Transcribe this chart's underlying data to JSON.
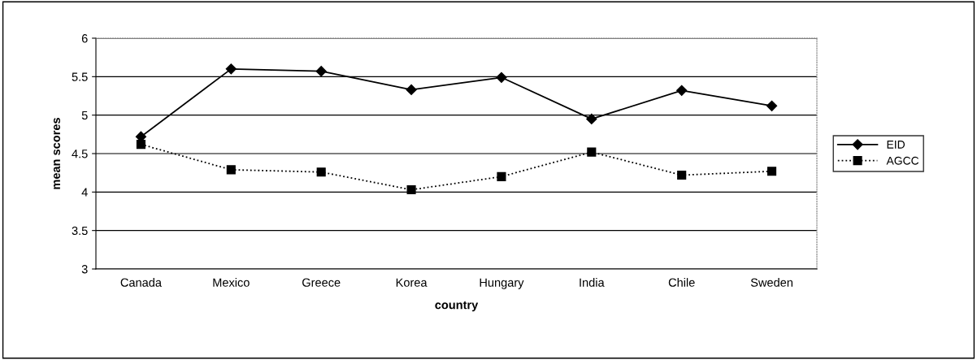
{
  "chart_data": {
    "type": "line",
    "xlabel": "country",
    "ylabel": "mean scores",
    "categories": [
      "Canada",
      "Mexico",
      "Greece",
      "Korea",
      "Hungary",
      "India",
      "Chile",
      "Sweden"
    ],
    "series": [
      {
        "name": "EID",
        "color": "#000000",
        "marker": "diamond",
        "line_style": "solid",
        "values": [
          4.72,
          5.6,
          5.57,
          5.33,
          5.49,
          4.95,
          5.32,
          5.12
        ]
      },
      {
        "name": "AGCC",
        "color": "#000000",
        "marker": "square",
        "line_style": "dotted",
        "values": [
          4.62,
          4.29,
          4.26,
          4.03,
          4.2,
          4.52,
          4.22,
          4.27
        ]
      }
    ],
    "ylim": [
      3,
      6
    ],
    "yticks": [
      3,
      3.5,
      4,
      4.5,
      5,
      5.5,
      6
    ],
    "grid": "y",
    "legend": "right"
  }
}
